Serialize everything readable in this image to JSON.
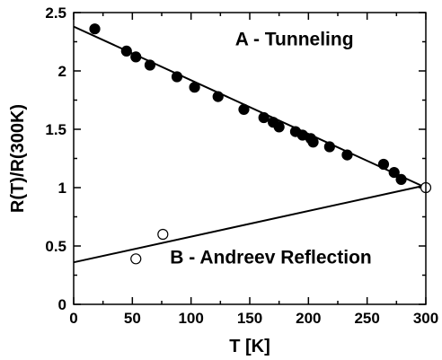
{
  "chart_data": {
    "type": "scatter",
    "title": "",
    "xlabel": "T [K]",
    "ylabel": "R(T)/R(300K)",
    "xlim": [
      0,
      300
    ],
    "ylim": [
      0,
      2.5
    ],
    "grid": false,
    "x_ticks": [
      0,
      50,
      100,
      150,
      200,
      250,
      300
    ],
    "y_ticks": [
      0,
      0.5,
      1,
      1.5,
      2,
      2.5
    ],
    "x_tick_labels": [
      "0",
      "50",
      "100",
      "150",
      "200",
      "250",
      "300"
    ],
    "y_tick_labels": [
      "0",
      "0.5",
      "1",
      "1.5",
      "2",
      "2.5"
    ],
    "series": [
      {
        "name": "A - Tunneling",
        "marker": "filled-circle",
        "color": "#000000",
        "points": [
          [
            18,
            2.36
          ],
          [
            45,
            2.17
          ],
          [
            53,
            2.12
          ],
          [
            65,
            2.05
          ],
          [
            88,
            1.95
          ],
          [
            103,
            1.86
          ],
          [
            123,
            1.78
          ],
          [
            145,
            1.67
          ],
          [
            162,
            1.6
          ],
          [
            170,
            1.56
          ],
          [
            175,
            1.52
          ],
          [
            189,
            1.48
          ],
          [
            195,
            1.45
          ],
          [
            202,
            1.42
          ],
          [
            204,
            1.39
          ],
          [
            218,
            1.35
          ],
          [
            233,
            1.28
          ],
          [
            264,
            1.2
          ],
          [
            273,
            1.13
          ],
          [
            279,
            1.07
          ]
        ],
        "fit_line": [
          [
            0,
            2.38
          ],
          [
            300,
            1.0
          ]
        ]
      },
      {
        "name": "B - Andreev Reflection",
        "marker": "open-circle",
        "color": "#000000",
        "points": [
          [
            53,
            0.39
          ],
          [
            76,
            0.6
          ],
          [
            300,
            1.0
          ]
        ],
        "fit_line": [
          [
            0,
            0.36
          ],
          [
            300,
            1.02
          ]
        ]
      }
    ],
    "annotations": [
      {
        "text": "A - Tunneling",
        "x": 188,
        "y": 2.22
      },
      {
        "text": "B - Andreev Reflection",
        "x": 168,
        "y": 0.35
      }
    ]
  }
}
